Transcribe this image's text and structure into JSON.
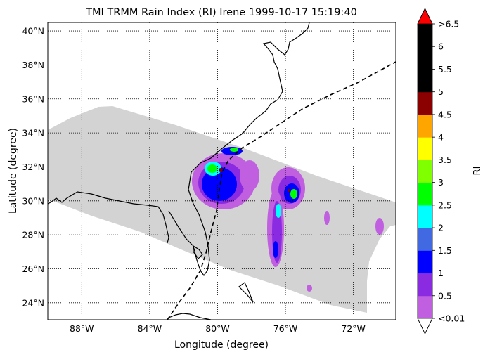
{
  "title": "TMI TRMM Rain Index (RI) Irene 1999-10-17 15:19:40",
  "xlabel": "Longitude (degree)",
  "ylabel": "Latitude (degree)",
  "colorbar": {
    "label": "RI",
    "tick_labels": [
      "<0.01",
      "0.5",
      "1",
      "1.5",
      "2",
      "2.5",
      "3",
      "3.5",
      "4",
      "4.5",
      "5",
      "5.5",
      "6",
      ">6.5"
    ],
    "colors": [
      "#c060e0",
      "#8a2be2",
      "#0000ff",
      "#4169e1",
      "#00ffff",
      "#00ff00",
      "#7fff00",
      "#ffff00",
      "#ffa500",
      "#8b0000",
      "#000000",
      "#000000",
      "#000000"
    ],
    "over_color": "#ff0000",
    "under_color": "#ffffff"
  },
  "map": {
    "lon_range": [
      -90,
      -69.5
    ],
    "lat_range": [
      23,
      40.5
    ],
    "lon_ticks": [
      -88,
      -84,
      -80,
      -76,
      -72
    ],
    "lon_tick_labels": [
      "88°W",
      "84°W",
      "80°W",
      "76°W",
      "72°W"
    ],
    "lat_ticks": [
      24,
      26,
      28,
      30,
      32,
      34,
      36,
      38,
      40
    ],
    "lat_tick_labels": [
      "24°N",
      "26°N",
      "28°N",
      "30°N",
      "32°N",
      "34°N",
      "36°N",
      "38°N",
      "40°N"
    ],
    "grid": true,
    "swath_color": "#d3d3d3",
    "coast_color": "#000000",
    "track_style": "dashed"
  }
}
